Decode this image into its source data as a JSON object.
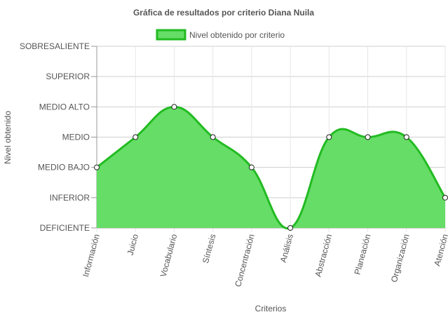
{
  "chart_data": {
    "type": "area",
    "title": "Gráfica de resultados por criterio Diana Nuila",
    "xlabel": "Criterios",
    "ylabel": "Nivel obtenido",
    "levels": [
      "DEFICIENTE",
      "INFERIOR",
      "MEDIO BAJO",
      "MEDIO",
      "MEDIO ALTO",
      "SUPERIOR",
      "SOBRESALIENTE"
    ],
    "categories": [
      "Información",
      "Juicio",
      "Vocabulario",
      "Síntesis",
      "Concentración",
      "Análisis",
      "Abstracción",
      "Planeación",
      "Organización",
      "Atención"
    ],
    "series": [
      {
        "name": "Nivel obtenido por criterio",
        "values": [
          2,
          3,
          4,
          3,
          2,
          0,
          3,
          3,
          3,
          1
        ],
        "value_labels": [
          "MEDIO BAJO",
          "MEDIO",
          "MEDIO ALTO",
          "MEDIO",
          "MEDIO BAJO",
          "DEFICIENTE",
          "MEDIO",
          "MEDIO",
          "MEDIO",
          "INFERIOR"
        ],
        "fill_color": "#66dd66",
        "line_color": "#22bb22"
      }
    ],
    "ylim": [
      0,
      6
    ],
    "grid": true,
    "legend_position": "top"
  }
}
